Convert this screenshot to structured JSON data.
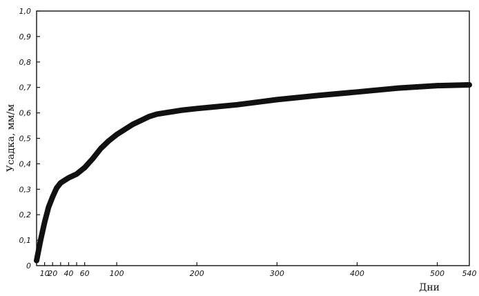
{
  "chart_data": {
    "type": "line",
    "title": "",
    "xlabel": "Дни",
    "ylabel": "Усадка, мм/м",
    "xlim": [
      0,
      540
    ],
    "ylim": [
      0,
      1.0
    ],
    "grid": false,
    "legend": "none",
    "x_ticks": [
      {
        "value": 0,
        "label": "0"
      },
      {
        "value": 10,
        "label": "10"
      },
      {
        "value": 20,
        "label": "20"
      },
      {
        "value": 40,
        "label": "40"
      },
      {
        "value": 60,
        "label": "60"
      },
      {
        "value": 100,
        "label": "100"
      },
      {
        "value": 200,
        "label": "200"
      },
      {
        "value": 300,
        "label": "300"
      },
      {
        "value": 400,
        "label": "400"
      },
      {
        "value": 500,
        "label": "500"
      },
      {
        "value": 540,
        "label": "540"
      }
    ],
    "x_minor_ticks": [
      30,
      50
    ],
    "y_ticks": [
      {
        "value": 0.1,
        "label": "0,1"
      },
      {
        "value": 0.2,
        "label": "0,2"
      },
      {
        "value": 0.3,
        "label": "0,3"
      },
      {
        "value": 0.4,
        "label": "0,4"
      },
      {
        "value": 0.5,
        "label": "0,5"
      },
      {
        "value": 0.6,
        "label": "0,6"
      },
      {
        "value": 0.7,
        "label": "0,7"
      },
      {
        "value": 0.8,
        "label": "0,8"
      },
      {
        "value": 0.9,
        "label": "0,9"
      },
      {
        "value": 1.0,
        "label": "1,0"
      }
    ],
    "series": [
      {
        "color": "#111111",
        "x": [
          0,
          5,
          10,
          15,
          20,
          25,
          30,
          35,
          40,
          50,
          60,
          70,
          80,
          90,
          100,
          110,
          120,
          130,
          140,
          150,
          160,
          180,
          200,
          220,
          250,
          300,
          350,
          400,
          450,
          500,
          540
        ],
        "y": [
          0.02,
          0.1,
          0.17,
          0.23,
          0.27,
          0.305,
          0.325,
          0.335,
          0.345,
          0.36,
          0.385,
          0.42,
          0.46,
          0.49,
          0.515,
          0.535,
          0.555,
          0.57,
          0.585,
          0.595,
          0.6,
          0.61,
          0.617,
          0.623,
          0.632,
          0.652,
          0.668,
          0.682,
          0.697,
          0.707,
          0.71
        ]
      }
    ]
  }
}
